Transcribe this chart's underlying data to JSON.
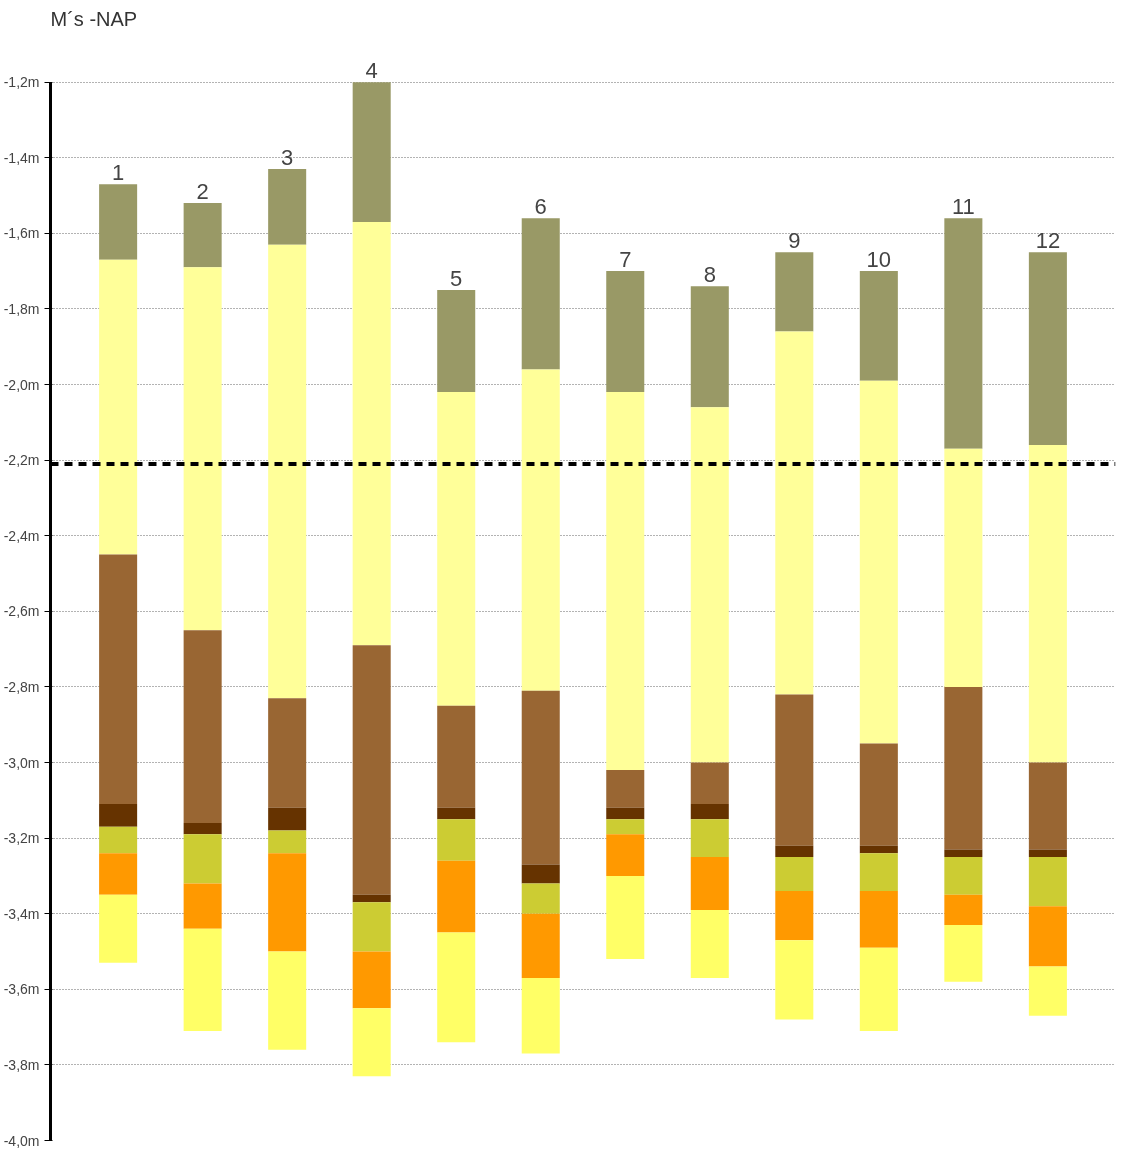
{
  "chart_data": {
    "type": "bar",
    "title": "M´s -NAP",
    "grid": "y",
    "categories": [
      "1",
      "2",
      "3",
      "4",
      "5",
      "6",
      "7",
      "8",
      "9",
      "10",
      "11",
      "12"
    ],
    "series": [
      {
        "color": "#999966",
        "base": [
          -1.47,
          -1.52,
          -1.43,
          -1.2,
          -1.75,
          -1.56,
          -1.7,
          -1.74,
          -1.65,
          -1.7,
          -1.56,
          -1.65
        ],
        "values": [
          -0.2,
          -0.17,
          -0.2,
          -0.37,
          -0.27,
          -0.4,
          -0.32,
          -0.32,
          -0.21,
          -0.29,
          -0.61,
          -0.51
        ]
      },
      {
        "color": "#ffff99",
        "base": [
          -1.67,
          -1.69,
          -1.63,
          -1.57,
          -2.02,
          -1.96,
          -2.02,
          -2.06,
          -1.86,
          -1.99,
          -2.17,
          -2.16
        ],
        "values": [
          -0.78,
          -0.96,
          -1.2,
          -1.12,
          -0.83,
          -0.85,
          -1.0,
          -0.94,
          -0.96,
          -0.96,
          -0.63,
          -0.84
        ]
      },
      {
        "color": "#996633",
        "base": [
          -2.45,
          -2.65,
          -2.83,
          -2.69,
          -2.85,
          -2.81,
          -3.02,
          -3.0,
          -2.82,
          -2.95,
          -2.8,
          -3.0
        ],
        "values": [
          -0.66,
          -0.51,
          -0.29,
          -0.66,
          -0.27,
          -0.46,
          -0.1,
          -0.11,
          -0.4,
          -0.27,
          -0.43,
          -0.23
        ]
      },
      {
        "color": "#663300",
        "base": [
          -3.11,
          -3.16,
          -3.12,
          -3.35,
          -3.12,
          -3.27,
          -3.12,
          -3.11,
          -3.22,
          -3.22,
          -3.23,
          -3.23
        ],
        "values": [
          -0.06,
          -0.03,
          -0.06,
          -0.02,
          -0.03,
          -0.05,
          -0.03,
          -0.04,
          -0.03,
          -0.02,
          -0.02,
          -0.02
        ]
      },
      {
        "color": "#cccc33",
        "base": [
          -3.17,
          -3.19,
          -3.18,
          -3.37,
          -3.15,
          -3.32,
          -3.15,
          -3.15,
          -3.25,
          -3.24,
          -3.25,
          -3.25
        ],
        "values": [
          -0.07,
          -0.13,
          -0.06,
          -0.13,
          -0.11,
          -0.08,
          -0.04,
          -0.1,
          -0.09,
          -0.1,
          -0.1,
          -0.13
        ]
      },
      {
        "color": "#ff9900",
        "base": [
          -3.24,
          -3.32,
          -3.24,
          -3.5,
          -3.26,
          -3.4,
          -3.19,
          -3.25,
          -3.34,
          -3.34,
          -3.35,
          -3.38
        ],
        "values": [
          -0.11,
          -0.12,
          -0.26,
          -0.15,
          -0.19,
          -0.17,
          -0.11,
          -0.14,
          -0.13,
          -0.15,
          -0.08,
          -0.16
        ]
      },
      {
        "color": "#ffff66",
        "base": [
          -3.35,
          -3.44,
          -3.5,
          -3.65,
          -3.45,
          -3.57,
          -3.3,
          -3.39,
          -3.47,
          -3.49,
          -3.43,
          -3.54
        ],
        "values": [
          -0.18,
          -0.27,
          -0.26,
          -0.18,
          -0.29,
          -0.2,
          -0.22,
          -0.18,
          -0.21,
          -0.22,
          -0.15,
          -0.13
        ]
      }
    ],
    "ylim": [
      -4.0,
      -1.2
    ],
    "yticks": [
      {
        "value": -1.2,
        "label": "-1,2m"
      },
      {
        "value": -1.4,
        "label": "-1,4m"
      },
      {
        "value": -1.6,
        "label": "-1,6m"
      },
      {
        "value": -1.8,
        "label": "-1,8m"
      },
      {
        "value": -2.0,
        "label": "-2,0m"
      },
      {
        "value": -2.2,
        "label": "-2,2m"
      },
      {
        "value": -2.4,
        "label": "-2,4m"
      },
      {
        "value": -2.6,
        "label": "-2,6m"
      },
      {
        "value": -2.8,
        "label": "-2,8m"
      },
      {
        "value": -3.0,
        "label": "-3,0m"
      },
      {
        "value": -3.2,
        "label": "-3,2m"
      },
      {
        "value": -3.4,
        "label": "-3,4m"
      },
      {
        "value": -3.6,
        "label": "-3,6m"
      },
      {
        "value": -3.8,
        "label": "-3,8m"
      },
      {
        "value": -4.0,
        "label": "-4,0m"
      }
    ],
    "ref_lines": [
      {
        "axis": "y",
        "value": -2.21,
        "color": "#000000",
        "line_style": "dashed"
      }
    ]
  }
}
